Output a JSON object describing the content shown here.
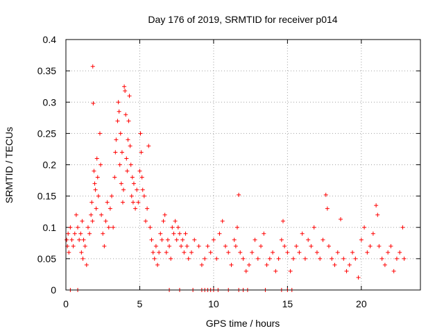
{
  "chart_data": {
    "type": "scatter",
    "title": "Day 176 of 2019, SRMTID for receiver p014",
    "xlabel": "GPS time / hours",
    "ylabel": "SRMTID / TECUs",
    "xlim": [
      0,
      24
    ],
    "ylim": [
      0,
      0.4
    ],
    "grid": true,
    "marker": "+",
    "color": "#ff0000",
    "x_ticks": [
      0,
      5,
      10,
      15,
      20
    ],
    "x_tick_labels": [
      "0",
      "5",
      "10",
      "15",
      "20"
    ],
    "y_ticks": [
      0,
      0.05,
      0.1,
      0.15,
      0.2,
      0.25,
      0.3,
      0.35,
      0.4
    ],
    "y_tick_labels": [
      "0",
      "0.05",
      "0.1",
      "0.15",
      "0.2",
      "0.25",
      "0.3",
      "0.35",
      "0.4"
    ],
    "series": [
      {
        "name": "SRMTID",
        "points": [
          [
            0.05,
            0.08
          ],
          [
            0.1,
            0.07
          ],
          [
            0.15,
            0.09
          ],
          [
            0.2,
            0.06
          ],
          [
            0.3,
            0.1
          ],
          [
            0.4,
            0.08
          ],
          [
            0.5,
            0.07
          ],
          [
            0.6,
            0.09
          ],
          [
            0.7,
            0.12
          ],
          [
            0.8,
            0.1
          ],
          [
            0.9,
            0.08
          ],
          [
            1.0,
            0.09
          ],
          [
            1.05,
            0.06
          ],
          [
            1.1,
            0.11
          ],
          [
            1.15,
            0.05
          ],
          [
            1.2,
            0.08
          ],
          [
            1.3,
            0.07
          ],
          [
            1.4,
            0.04
          ],
          [
            1.5,
            0.1
          ],
          [
            1.6,
            0.09
          ],
          [
            1.7,
            0.12
          ],
          [
            1.75,
            0.14
          ],
          [
            1.8,
            0.11
          ],
          [
            1.82,
            0.357
          ],
          [
            1.85,
            0.298
          ],
          [
            1.9,
            0.19
          ],
          [
            1.95,
            0.17
          ],
          [
            2.0,
            0.16
          ],
          [
            2.05,
            0.13
          ],
          [
            2.1,
            0.21
          ],
          [
            2.15,
            0.18
          ],
          [
            2.2,
            0.15
          ],
          [
            2.3,
            0.25
          ],
          [
            2.35,
            0.2
          ],
          [
            2.4,
            0.12
          ],
          [
            2.5,
            0.09
          ],
          [
            2.6,
            0.07
          ],
          [
            2.7,
            0.11
          ],
          [
            2.8,
            0.14
          ],
          [
            2.9,
            0.1
          ],
          [
            3.0,
            0.13
          ],
          [
            3.1,
            0.15
          ],
          [
            3.2,
            0.1
          ],
          [
            3.3,
            0.18
          ],
          [
            3.35,
            0.22
          ],
          [
            3.4,
            0.24
          ],
          [
            3.5,
            0.27
          ],
          [
            3.55,
            0.3
          ],
          [
            3.6,
            0.285
          ],
          [
            3.65,
            0.2
          ],
          [
            3.7,
            0.25
          ],
          [
            3.75,
            0.17
          ],
          [
            3.8,
            0.22
          ],
          [
            3.85,
            0.14
          ],
          [
            3.9,
            0.16
          ],
          [
            3.95,
            0.325
          ],
          [
            4.0,
            0.318
          ],
          [
            4.05,
            0.28
          ],
          [
            4.1,
            0.21
          ],
          [
            4.15,
            0.19
          ],
          [
            4.2,
            0.24
          ],
          [
            4.25,
            0.27
          ],
          [
            4.3,
            0.31
          ],
          [
            4.35,
            0.23
          ],
          [
            4.4,
            0.2
          ],
          [
            4.45,
            0.15
          ],
          [
            4.5,
            0.18
          ],
          [
            4.55,
            0.14
          ],
          [
            4.6,
            0.17
          ],
          [
            4.7,
            0.13
          ],
          [
            4.8,
            0.16
          ],
          [
            4.9,
            0.14
          ],
          [
            5.0,
            0.19
          ],
          [
            5.05,
            0.25
          ],
          [
            5.1,
            0.22
          ],
          [
            5.15,
            0.18
          ],
          [
            5.2,
            0.16
          ],
          [
            5.3,
            0.15
          ],
          [
            5.4,
            0.11
          ],
          [
            5.5,
            0.13
          ],
          [
            5.6,
            0.23
          ],
          [
            5.7,
            0.1
          ],
          [
            5.8,
            0.08
          ],
          [
            5.9,
            0.06
          ],
          [
            6.0,
            0.05
          ],
          [
            6.1,
            0.07
          ],
          [
            6.2,
            0.04
          ],
          [
            6.3,
            0.06
          ],
          [
            6.4,
            0.09
          ],
          [
            6.5,
            0.08
          ],
          [
            6.6,
            0.11
          ],
          [
            6.7,
            0.12
          ],
          [
            6.8,
            0.06
          ],
          [
            6.9,
            0.08
          ],
          [
            7.0,
            0.07
          ],
          [
            7.1,
            0.05
          ],
          [
            7.2,
            0.1
          ],
          [
            7.3,
            0.09
          ],
          [
            7.4,
            0.11
          ],
          [
            7.5,
            0.08
          ],
          [
            7.6,
            0.1
          ],
          [
            7.7,
            0.09
          ],
          [
            7.8,
            0.07
          ],
          [
            7.9,
            0.08
          ],
          [
            8.0,
            0.06
          ],
          [
            8.1,
            0.09
          ],
          [
            8.2,
            0.07
          ],
          [
            8.3,
            0.05
          ],
          [
            8.5,
            0.06
          ],
          [
            8.7,
            0.08
          ],
          [
            9.0,
            0.07
          ],
          [
            9.2,
            0.04
          ],
          [
            9.4,
            0.05
          ],
          [
            9.6,
            0.07
          ],
          [
            9.8,
            0.06
          ],
          [
            10.0,
            0.08
          ],
          [
            10.2,
            0.05
          ],
          [
            10.4,
            0.09
          ],
          [
            10.6,
            0.11
          ],
          [
            10.8,
            0.07
          ],
          [
            11.0,
            0.06
          ],
          [
            11.2,
            0.04
          ],
          [
            11.4,
            0.08
          ],
          [
            11.5,
            0.07
          ],
          [
            11.6,
            0.1
          ],
          [
            11.7,
            0.152
          ],
          [
            11.8,
            0.06
          ],
          [
            12.0,
            0.05
          ],
          [
            12.2,
            0.03
          ],
          [
            12.4,
            0.04
          ],
          [
            12.6,
            0.06
          ],
          [
            12.8,
            0.08
          ],
          [
            13.0,
            0.05
          ],
          [
            13.2,
            0.07
          ],
          [
            13.4,
            0.09
          ],
          [
            13.6,
            0.04
          ],
          [
            13.8,
            0.05
          ],
          [
            14.0,
            0.06
          ],
          [
            14.2,
            0.03
          ],
          [
            14.4,
            0.05
          ],
          [
            14.6,
            0.08
          ],
          [
            14.7,
            0.11
          ],
          [
            14.8,
            0.07
          ],
          [
            15.0,
            0.06
          ],
          [
            15.2,
            0.03
          ],
          [
            15.4,
            0.05
          ],
          [
            15.6,
            0.07
          ],
          [
            15.8,
            0.06
          ],
          [
            16.0,
            0.09
          ],
          [
            16.2,
            0.05
          ],
          [
            16.4,
            0.08
          ],
          [
            16.6,
            0.07
          ],
          [
            16.8,
            0.1
          ],
          [
            17.0,
            0.06
          ],
          [
            17.2,
            0.05
          ],
          [
            17.4,
            0.08
          ],
          [
            17.6,
            0.152
          ],
          [
            17.7,
            0.13
          ],
          [
            17.8,
            0.07
          ],
          [
            18.0,
            0.05
          ],
          [
            18.2,
            0.04
          ],
          [
            18.4,
            0.06
          ],
          [
            18.6,
            0.113
          ],
          [
            18.8,
            0.05
          ],
          [
            19.0,
            0.03
          ],
          [
            19.2,
            0.04
          ],
          [
            19.4,
            0.06
          ],
          [
            19.6,
            0.05
          ],
          [
            19.8,
            0.02
          ],
          [
            20.0,
            0.08
          ],
          [
            20.2,
            0.1
          ],
          [
            20.4,
            0.06
          ],
          [
            20.6,
            0.07
          ],
          [
            20.8,
            0.09
          ],
          [
            21.0,
            0.135
          ],
          [
            21.1,
            0.12
          ],
          [
            21.2,
            0.07
          ],
          [
            21.4,
            0.05
          ],
          [
            21.6,
            0.04
          ],
          [
            21.8,
            0.06
          ],
          [
            22.0,
            0.07
          ],
          [
            22.2,
            0.03
          ],
          [
            22.4,
            0.05
          ],
          [
            22.6,
            0.06
          ],
          [
            22.8,
            0.1
          ],
          [
            22.9,
            0.05
          ],
          [
            0.3,
            0.0
          ],
          [
            0.8,
            0.0
          ],
          [
            7.0,
            0.0
          ],
          [
            7.7,
            0.0
          ],
          [
            8.6,
            0.0
          ],
          [
            9.2,
            0.0
          ],
          [
            9.4,
            0.0
          ],
          [
            9.6,
            0.0
          ],
          [
            9.8,
            0.0
          ],
          [
            10.0,
            0.0
          ],
          [
            10.3,
            0.0
          ],
          [
            11.0,
            0.0
          ],
          [
            11.7,
            0.0
          ],
          [
            12.0,
            0.0
          ],
          [
            12.3,
            0.0
          ],
          [
            13.5,
            0.0
          ],
          [
            14.6,
            0.0
          ],
          [
            15.0,
            0.0
          ],
          [
            15.3,
            0.0
          ]
        ]
      }
    ]
  }
}
